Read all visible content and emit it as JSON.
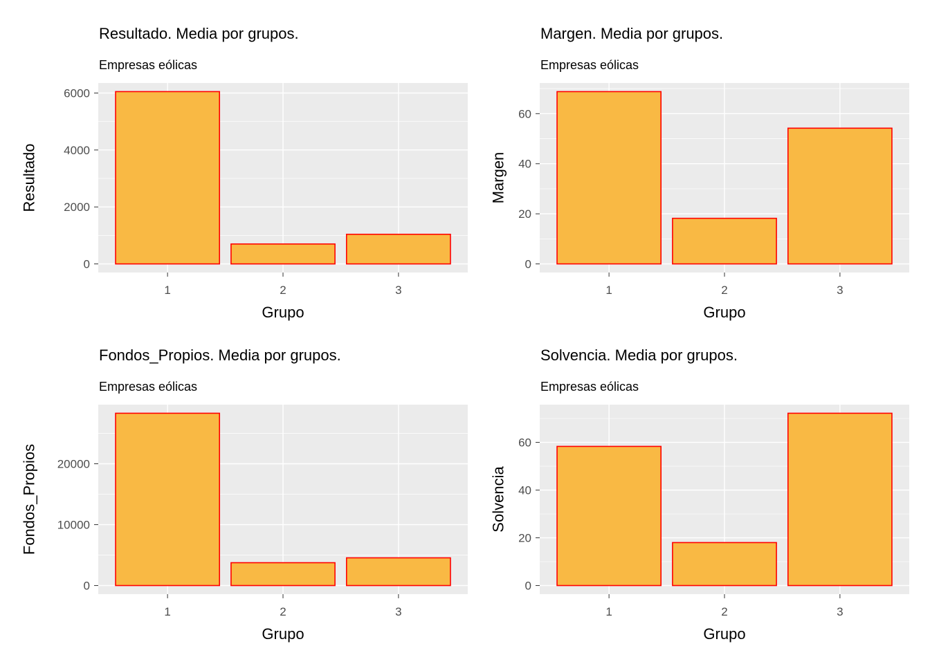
{
  "colors": {
    "panel_bg": "#EBEBEB",
    "grid": "#FFFFFF",
    "bar_fill": "#F9B944",
    "bar_border": "#FF0000",
    "tick_text": "#4D4D4D"
  },
  "chart_data": [
    {
      "type": "bar",
      "title": "Resultado. Media por grupos.",
      "subtitle": "Empresas eólicas",
      "xlabel": "Grupo",
      "ylabel": "Resultado",
      "categories": [
        "1",
        "2",
        "3"
      ],
      "values": [
        6050,
        700,
        1040
      ],
      "yticks": [
        0,
        2000,
        4000,
        6000
      ],
      "ylim": [
        -302,
        6352
      ],
      "grid": true
    },
    {
      "type": "bar",
      "title": "Margen. Media por grupos.",
      "subtitle": "Empresas eólicas",
      "xlabel": "Grupo",
      "ylabel": "Margen",
      "categories": [
        "1",
        "2",
        "3"
      ],
      "values": [
        68.8,
        18.2,
        54.2
      ],
      "yticks": [
        0,
        20,
        40,
        60
      ],
      "ylim": [
        -3.44,
        72.24
      ],
      "grid": true
    },
    {
      "type": "bar",
      "title": "Fondos_Propios. Media por grupos.",
      "subtitle": "Empresas eólicas",
      "xlabel": "Grupo",
      "ylabel": "Fondos_Propios",
      "categories": [
        "1",
        "2",
        "3"
      ],
      "values": [
        28300,
        3750,
        4550
      ],
      "yticks": [
        0,
        10000,
        20000
      ],
      "ylim": [
        -1415,
        29715
      ],
      "grid": true
    },
    {
      "type": "bar",
      "title": "Solvencia. Media por grupos.",
      "subtitle": "Empresas eólicas",
      "xlabel": "Grupo",
      "ylabel": "Solvencia",
      "categories": [
        "1",
        "2",
        "3"
      ],
      "values": [
        58.3,
        18.0,
        72.2
      ],
      "yticks": [
        0,
        20,
        40,
        60
      ],
      "ylim": [
        -3.61,
        75.81
      ],
      "grid": true
    }
  ]
}
